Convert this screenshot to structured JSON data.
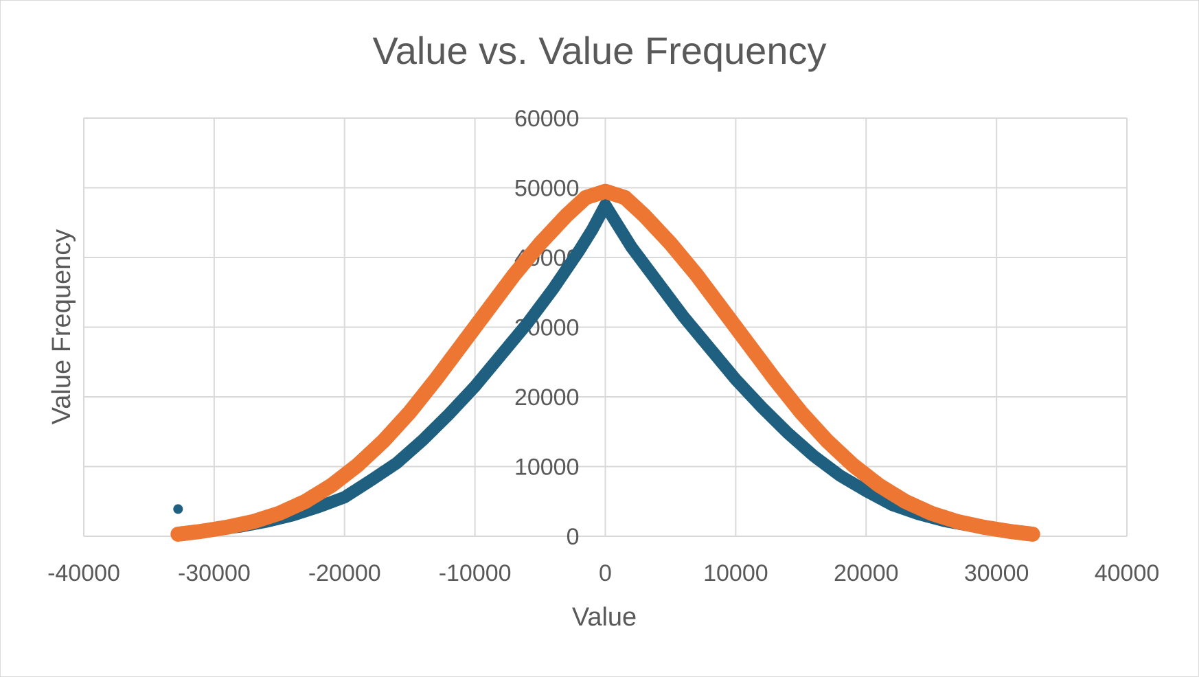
{
  "chart_data": {
    "type": "scatter",
    "title": "Value vs. Value Frequency",
    "xlabel": "Value",
    "ylabel": "Value Frequency",
    "xlim": [
      -40000,
      40000
    ],
    "ylim": [
      0,
      60000
    ],
    "x_ticks": [
      "-40000",
      "-30000",
      "-20000",
      "-10000",
      "0",
      "10000",
      "20000",
      "30000",
      "40000"
    ],
    "y_ticks": [
      "0",
      "10000",
      "20000",
      "30000",
      "40000",
      "50000",
      "60000"
    ],
    "grid": true,
    "legend": "none",
    "series": [
      {
        "color": "#1f5f7f",
        "points": [
          [
            -32768,
            3900
          ],
          [
            -32000,
            480
          ],
          [
            -30000,
            900
          ],
          [
            -28000,
            1400
          ],
          [
            -26000,
            2100
          ],
          [
            -24000,
            3000
          ],
          [
            -22000,
            4200
          ],
          [
            -20000,
            5600
          ],
          [
            -18000,
            8000
          ],
          [
            -16000,
            10500
          ],
          [
            -14000,
            13800
          ],
          [
            -12000,
            17500
          ],
          [
            -10000,
            21500
          ],
          [
            -8000,
            26000
          ],
          [
            -6000,
            30500
          ],
          [
            -4000,
            35500
          ],
          [
            -2000,
            41000
          ],
          [
            -1000,
            44000
          ],
          [
            0,
            47500
          ],
          [
            1000,
            44500
          ],
          [
            2000,
            41500
          ],
          [
            4000,
            36500
          ],
          [
            6000,
            31500
          ],
          [
            8000,
            27000
          ],
          [
            10000,
            22500
          ],
          [
            12000,
            18500
          ],
          [
            14000,
            14800
          ],
          [
            16000,
            11500
          ],
          [
            18000,
            8700
          ],
          [
            20000,
            6500
          ],
          [
            22000,
            4500
          ],
          [
            24000,
            3200
          ],
          [
            26000,
            2200
          ],
          [
            28000,
            1500
          ],
          [
            30000,
            950
          ],
          [
            32000,
            500
          ],
          [
            32767,
            400
          ]
        ]
      },
      {
        "color": "#ed7632",
        "points": [
          [
            -32768,
            300
          ],
          [
            -31000,
            700
          ],
          [
            -29000,
            1300
          ],
          [
            -27000,
            2100
          ],
          [
            -25000,
            3300
          ],
          [
            -23000,
            5000
          ],
          [
            -21000,
            7300
          ],
          [
            -19000,
            10200
          ],
          [
            -17000,
            13700
          ],
          [
            -15000,
            17800
          ],
          [
            -13000,
            22500
          ],
          [
            -11000,
            27500
          ],
          [
            -9000,
            32500
          ],
          [
            -7000,
            37500
          ],
          [
            -5000,
            42000
          ],
          [
            -3000,
            46000
          ],
          [
            -1500,
            48600
          ],
          [
            0,
            49500
          ],
          [
            1500,
            48600
          ],
          [
            3000,
            46000
          ],
          [
            5000,
            42000
          ],
          [
            7000,
            37500
          ],
          [
            9000,
            32500
          ],
          [
            11000,
            27500
          ],
          [
            13000,
            22500
          ],
          [
            15000,
            17800
          ],
          [
            17000,
            13700
          ],
          [
            19000,
            10200
          ],
          [
            21000,
            7300
          ],
          [
            23000,
            5000
          ],
          [
            25000,
            3300
          ],
          [
            27000,
            2100
          ],
          [
            29000,
            1300
          ],
          [
            31000,
            700
          ],
          [
            32767,
            300
          ]
        ]
      }
    ]
  }
}
